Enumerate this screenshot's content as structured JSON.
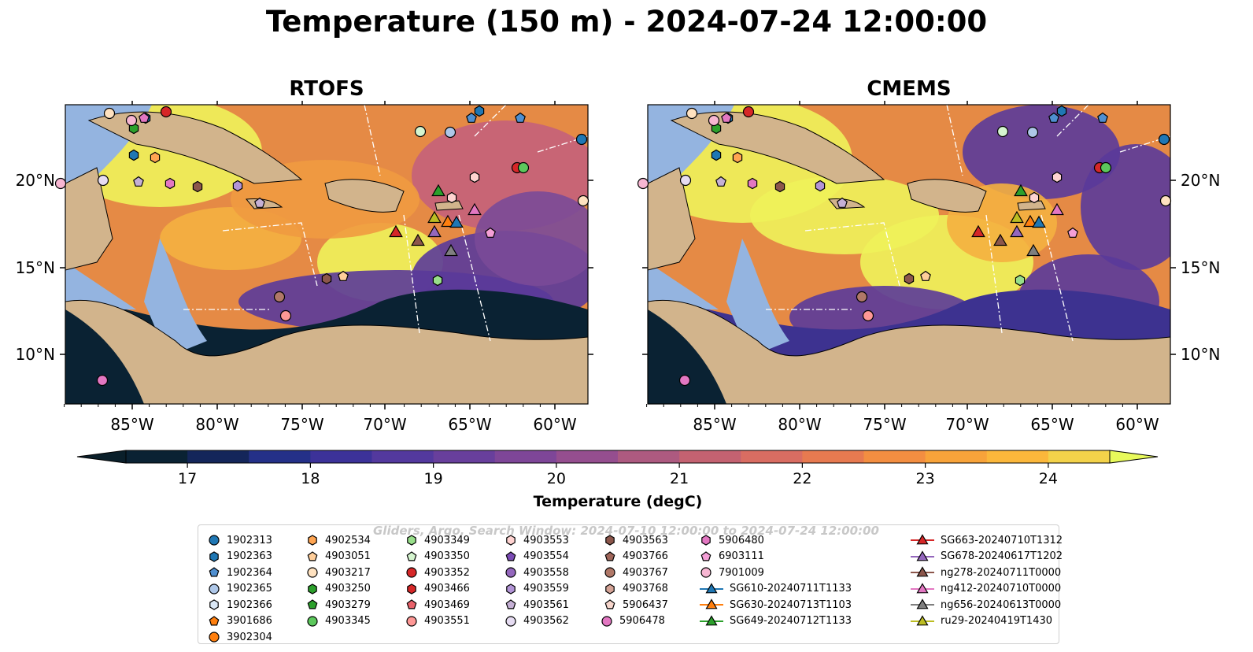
{
  "title": "Temperature (150 m) - 2024-07-24 12:00:00",
  "panels": [
    {
      "name": "rtofs",
      "title": "RTOFS"
    },
    {
      "name": "cmems",
      "title": "CMEMS"
    }
  ],
  "axes": {
    "lon_ticks": [
      "85°W",
      "80°W",
      "75°W",
      "70°W",
      "65°W",
      "60°W"
    ],
    "lat_ticks": [
      "20°N",
      "15°N",
      "10°N"
    ]
  },
  "colorbar": {
    "label": "Temperature (degC)",
    "ticks": [
      "17",
      "18",
      "19",
      "20",
      "21",
      "22",
      "23",
      "24"
    ],
    "colors": [
      "#0a2233",
      "#14265a",
      "#243088",
      "#3c3299",
      "#53399e",
      "#683f9c",
      "#7e4698",
      "#954e8f",
      "#ad5a80",
      "#c46271",
      "#d96d62",
      "#e77a50",
      "#f38e41",
      "#f8a33a",
      "#fbb73b",
      "#f3d24a"
    ],
    "extend_low": "#0a1f2a",
    "extend_high": "#e8fa5b",
    "vmin": 16.5,
    "vmax": 24.5
  },
  "legend_watermark": "Gliders, Argo, Search Window: 2024-07-10 12:00:00 to 2024-07-24 12:00:00",
  "legend": [
    {
      "label": "1902313",
      "marker": "circle",
      "color": "#1f77b4"
    },
    {
      "label": "1902363",
      "marker": "hexagon",
      "color": "#1f77b4"
    },
    {
      "label": "1902364",
      "marker": "pentagon",
      "color": "#4f8fd0"
    },
    {
      "label": "1902365",
      "marker": "circle",
      "color": "#aec7e8"
    },
    {
      "label": "1902366",
      "marker": "hexagon",
      "color": "#dbe8f6"
    },
    {
      "label": "3901686",
      "marker": "pentagon",
      "color": "#ff7f0e"
    },
    {
      "label": "3902304",
      "marker": "circle",
      "color": "#ff7f0e"
    },
    {
      "label": "4902534",
      "marker": "hexagon",
      "color": "#ffa552"
    },
    {
      "label": "4903051",
      "marker": "pentagon",
      "color": "#ffce9a"
    },
    {
      "label": "4903217",
      "marker": "circle",
      "color": "#ffe2c0"
    },
    {
      "label": "4903250",
      "marker": "hexagon",
      "color": "#2ca02c"
    },
    {
      "label": "4903279",
      "marker": "pentagon",
      "color": "#2ca02c"
    },
    {
      "label": "4903345",
      "marker": "circle",
      "color": "#5cc85c"
    },
    {
      "label": "4903349",
      "marker": "hexagon",
      "color": "#98df8a"
    },
    {
      "label": "4903350",
      "marker": "pentagon",
      "color": "#d5f5cf"
    },
    {
      "label": "4903352",
      "marker": "circle",
      "color": "#d62728"
    },
    {
      "label": "4903466",
      "marker": "hexagon",
      "color": "#d62728"
    },
    {
      "label": "4903469",
      "marker": "pentagon",
      "color": "#e8616a"
    },
    {
      "label": "4903551",
      "marker": "circle",
      "color": "#ff9896"
    },
    {
      "label": "4903553",
      "marker": "hexagon",
      "color": "#ffd3d1"
    },
    {
      "label": "4903554",
      "marker": "pentagon",
      "color": "#7b4bb5"
    },
    {
      "label": "4903558",
      "marker": "circle",
      "color": "#9467bd"
    },
    {
      "label": "4903559",
      "marker": "hexagon",
      "color": "#b294d6"
    },
    {
      "label": "4903561",
      "marker": "pentagon",
      "color": "#c5b0d5"
    },
    {
      "label": "4903562",
      "marker": "circle",
      "color": "#e6dcf2"
    },
    {
      "label": "4903563",
      "marker": "hexagon",
      "color": "#8c564b"
    },
    {
      "label": "4903766",
      "marker": "pentagon",
      "color": "#a0665a"
    },
    {
      "label": "4903767",
      "marker": "circle",
      "color": "#b07868"
    },
    {
      "label": "4903768",
      "marker": "hexagon",
      "color": "#d4a396"
    },
    {
      "label": "5906437",
      "marker": "pentagon",
      "color": "#f7d6cc"
    },
    {
      "label": "5906478",
      "marker": "circle",
      "color": "#e377c2"
    },
    {
      "label": "5906480",
      "marker": "hexagon",
      "color": "#e377c2"
    },
    {
      "label": "6903111",
      "marker": "pentagon",
      "color": "#f49fd6"
    },
    {
      "label": "7901009",
      "marker": "circle",
      "color": "#f7b6d2"
    },
    {
      "label": "SG610-20240711T1133",
      "marker": "triangle-line",
      "color": "#1f77b4"
    },
    {
      "label": "SG630-20240713T1103",
      "marker": "triangle-line",
      "color": "#ff7f0e"
    },
    {
      "label": "SG649-20240712T1133",
      "marker": "triangle-line",
      "color": "#2ca02c"
    },
    {
      "label": "SG663-20240710T1312",
      "marker": "triangle-line",
      "color": "#d62728"
    },
    {
      "label": "SG678-20240617T1202",
      "marker": "triangle-line",
      "color": "#9467bd"
    },
    {
      "label": "ng278-20240711T0000",
      "marker": "triangle-line",
      "color": "#8c564b"
    },
    {
      "label": "ng412-20240710T0000",
      "marker": "triangle-line",
      "color": "#e377c2"
    },
    {
      "label": "ng656-20240613T0000",
      "marker": "triangle-line",
      "color": "#7f7f7f"
    },
    {
      "label": "ru29-20240419T1430",
      "marker": "triangle-line",
      "color": "#bcbd22"
    }
  ],
  "map_colors": {
    "land": "#d2b48c",
    "shelf": "#94b4e0",
    "deep": "#0a2233",
    "warm": "#eef25a",
    "mid": "#e58a45",
    "cool": "#5a3a9a"
  }
}
